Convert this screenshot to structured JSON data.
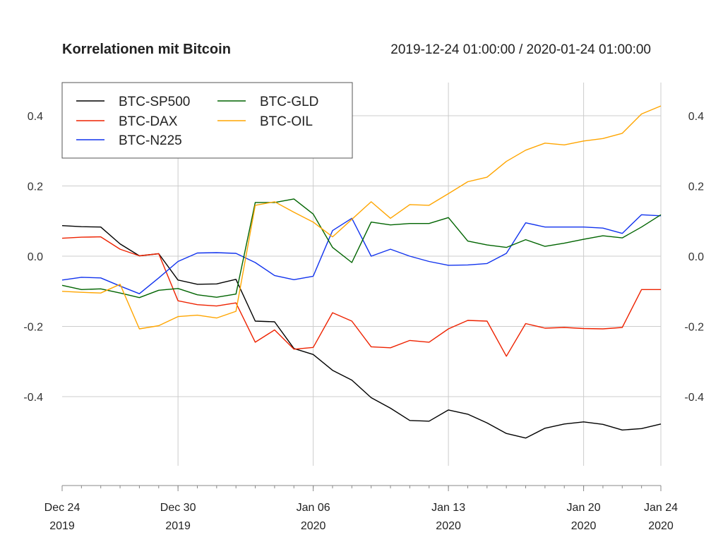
{
  "title": "Korrelationen mit Bitcoin",
  "date_range": "2019-12-24 01:00:00 / 2020-01-24 01:00:00",
  "colors": {
    "BTC-SP500": "#000000",
    "BTC-DAX": "#ee2200",
    "BTC-N225": "#1133ee",
    "BTC-GLD": "#006400",
    "BTC-OIL": "#ffa500",
    "grid": "#cccccc",
    "axis": "#888888"
  },
  "chart_data": {
    "type": "line",
    "title": "Korrelationen mit Bitcoin",
    "subtitle": "2019-12-24 01:00:00 / 2020-01-24 01:00:00",
    "x": [
      "2019-12-24",
      "2019-12-25",
      "2019-12-26",
      "2019-12-27",
      "2019-12-28",
      "2019-12-29",
      "2019-12-30",
      "2019-12-31",
      "2020-01-01",
      "2020-01-02",
      "2020-01-03",
      "2020-01-04",
      "2020-01-05",
      "2020-01-06",
      "2020-01-07",
      "2020-01-08",
      "2020-01-09",
      "2020-01-10",
      "2020-01-11",
      "2020-01-12",
      "2020-01-13",
      "2020-01-14",
      "2020-01-15",
      "2020-01-16",
      "2020-01-17",
      "2020-01-18",
      "2020-01-19",
      "2020-01-20",
      "2020-01-21",
      "2020-01-22",
      "2020-01-23",
      "2020-01-24"
    ],
    "x_tick_labels": [
      {
        "date": "2019-12-24",
        "line1": "Dec 24",
        "line2": "2019"
      },
      {
        "date": "2019-12-30",
        "line1": "Dec 30",
        "line2": "2019"
      },
      {
        "date": "2020-01-06",
        "line1": "Jan 06",
        "line2": "2020"
      },
      {
        "date": "2020-01-13",
        "line1": "Jan 13",
        "line2": "2020"
      },
      {
        "date": "2020-01-20",
        "line1": "Jan 20",
        "line2": "2020"
      },
      {
        "date": "2020-01-24",
        "line1": "Jan 24",
        "line2": "2020"
      }
    ],
    "vertical_gridlines": [
      "2019-12-30",
      "2020-01-06",
      "2020-01-13",
      "2020-01-20",
      "2020-01-24"
    ],
    "y_ticks": [
      0.4,
      0.2,
      0.0,
      -0.2,
      -0.4
    ],
    "y_tick_labels": [
      "0.4",
      "0.2",
      "0.0",
      "-0.2",
      "-0.4"
    ],
    "ylim": [
      -0.63,
      0.5
    ],
    "grid": true,
    "legend_position": "top-left",
    "series": [
      {
        "name": "BTC-SP500",
        "color": "#000000",
        "values": [
          0.087,
          0.084,
          0.083,
          0.035,
          0.001,
          0.007,
          -0.068,
          -0.08,
          -0.079,
          -0.066,
          -0.185,
          -0.187,
          -0.263,
          -0.28,
          -0.325,
          -0.353,
          -0.403,
          -0.433,
          -0.468,
          -0.47,
          -0.438,
          -0.45,
          -0.475,
          -0.505,
          -0.518,
          -0.49,
          -0.478,
          -0.472,
          -0.479,
          -0.495,
          -0.491,
          -0.478
        ]
      },
      {
        "name": "BTC-DAX",
        "color": "#ee2200",
        "values": [
          0.051,
          0.054,
          0.055,
          0.02,
          0.001,
          0.007,
          -0.127,
          -0.138,
          -0.142,
          -0.133,
          -0.245,
          -0.21,
          -0.265,
          -0.26,
          -0.161,
          -0.185,
          -0.258,
          -0.261,
          -0.24,
          -0.245,
          -0.207,
          -0.183,
          -0.185,
          -0.285,
          -0.192,
          -0.205,
          -0.203,
          -0.206,
          -0.207,
          -0.203,
          -0.095,
          -0.095
        ]
      },
      {
        "name": "BTC-N225",
        "color": "#1133ee",
        "values": [
          -0.068,
          -0.06,
          -0.062,
          -0.085,
          -0.107,
          -0.062,
          -0.015,
          0.009,
          0.01,
          0.008,
          -0.018,
          -0.055,
          -0.067,
          -0.057,
          0.073,
          0.108,
          0.0,
          0.02,
          0.0,
          -0.015,
          -0.026,
          -0.025,
          -0.021,
          0.008,
          0.095,
          0.083,
          0.083,
          0.083,
          0.08,
          0.065,
          0.118,
          0.115
        ]
      },
      {
        "name": "BTC-GLD",
        "color": "#006400",
        "values": [
          -0.083,
          -0.095,
          -0.093,
          -0.105,
          -0.118,
          -0.097,
          -0.092,
          -0.11,
          -0.117,
          -0.108,
          0.153,
          0.153,
          0.163,
          0.12,
          0.025,
          -0.018,
          0.097,
          0.089,
          0.093,
          0.093,
          0.11,
          0.043,
          0.032,
          0.025,
          0.047,
          0.028,
          0.037,
          0.048,
          0.058,
          0.052,
          0.083,
          0.118
        ]
      },
      {
        "name": "BTC-OIL",
        "color": "#ffa500",
        "values": [
          -0.1,
          -0.103,
          -0.105,
          -0.08,
          -0.207,
          -0.198,
          -0.172,
          -0.168,
          -0.176,
          -0.157,
          0.145,
          0.155,
          0.125,
          0.097,
          0.055,
          0.105,
          0.155,
          0.108,
          0.147,
          0.145,
          0.178,
          0.212,
          0.225,
          0.27,
          0.302,
          0.322,
          0.317,
          0.328,
          0.335,
          0.35,
          0.405,
          0.428
        ]
      }
    ]
  }
}
